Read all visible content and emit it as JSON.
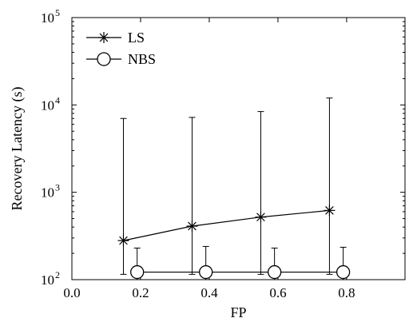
{
  "chart_data": {
    "type": "line",
    "title": "",
    "xlabel": "FP",
    "ylabel": "Recovery Latency (s)",
    "xlim": [
      0.0,
      0.97
    ],
    "ylim": [
      100,
      100000
    ],
    "y_scale": "log",
    "grid": false,
    "legend_position": "top-left",
    "x_ticks": [
      {
        "value": 0.0,
        "label": "0.0"
      },
      {
        "value": 0.2,
        "label": "0.2"
      },
      {
        "value": 0.4,
        "label": "0.4"
      },
      {
        "value": 0.6,
        "label": "0.6"
      },
      {
        "value": 0.8,
        "label": "0.8"
      }
    ],
    "y_ticks": [
      {
        "value": 100,
        "base": "10",
        "exp": "2"
      },
      {
        "value": 1000,
        "base": "10",
        "exp": "3"
      },
      {
        "value": 10000,
        "base": "10",
        "exp": "4"
      },
      {
        "value": 100000,
        "base": "10",
        "exp": "5"
      }
    ],
    "series": [
      {
        "name": "LS",
        "marker": "asterisk",
        "color": "#000000",
        "x": [
          0.15,
          0.35,
          0.55,
          0.75
        ],
        "y": [
          280,
          410,
          520,
          620
        ],
        "err_low": [
          115,
          115,
          115,
          115
        ],
        "err_high": [
          7000,
          7200,
          8400,
          12000
        ]
      },
      {
        "name": "NBS",
        "marker": "circle",
        "color": "#000000",
        "x": [
          0.19,
          0.39,
          0.59,
          0.79
        ],
        "y": [
          122,
          122,
          122,
          122
        ],
        "err_low": [
          100,
          100,
          100,
          100
        ],
        "err_high": [
          230,
          240,
          230,
          235
        ]
      }
    ]
  }
}
